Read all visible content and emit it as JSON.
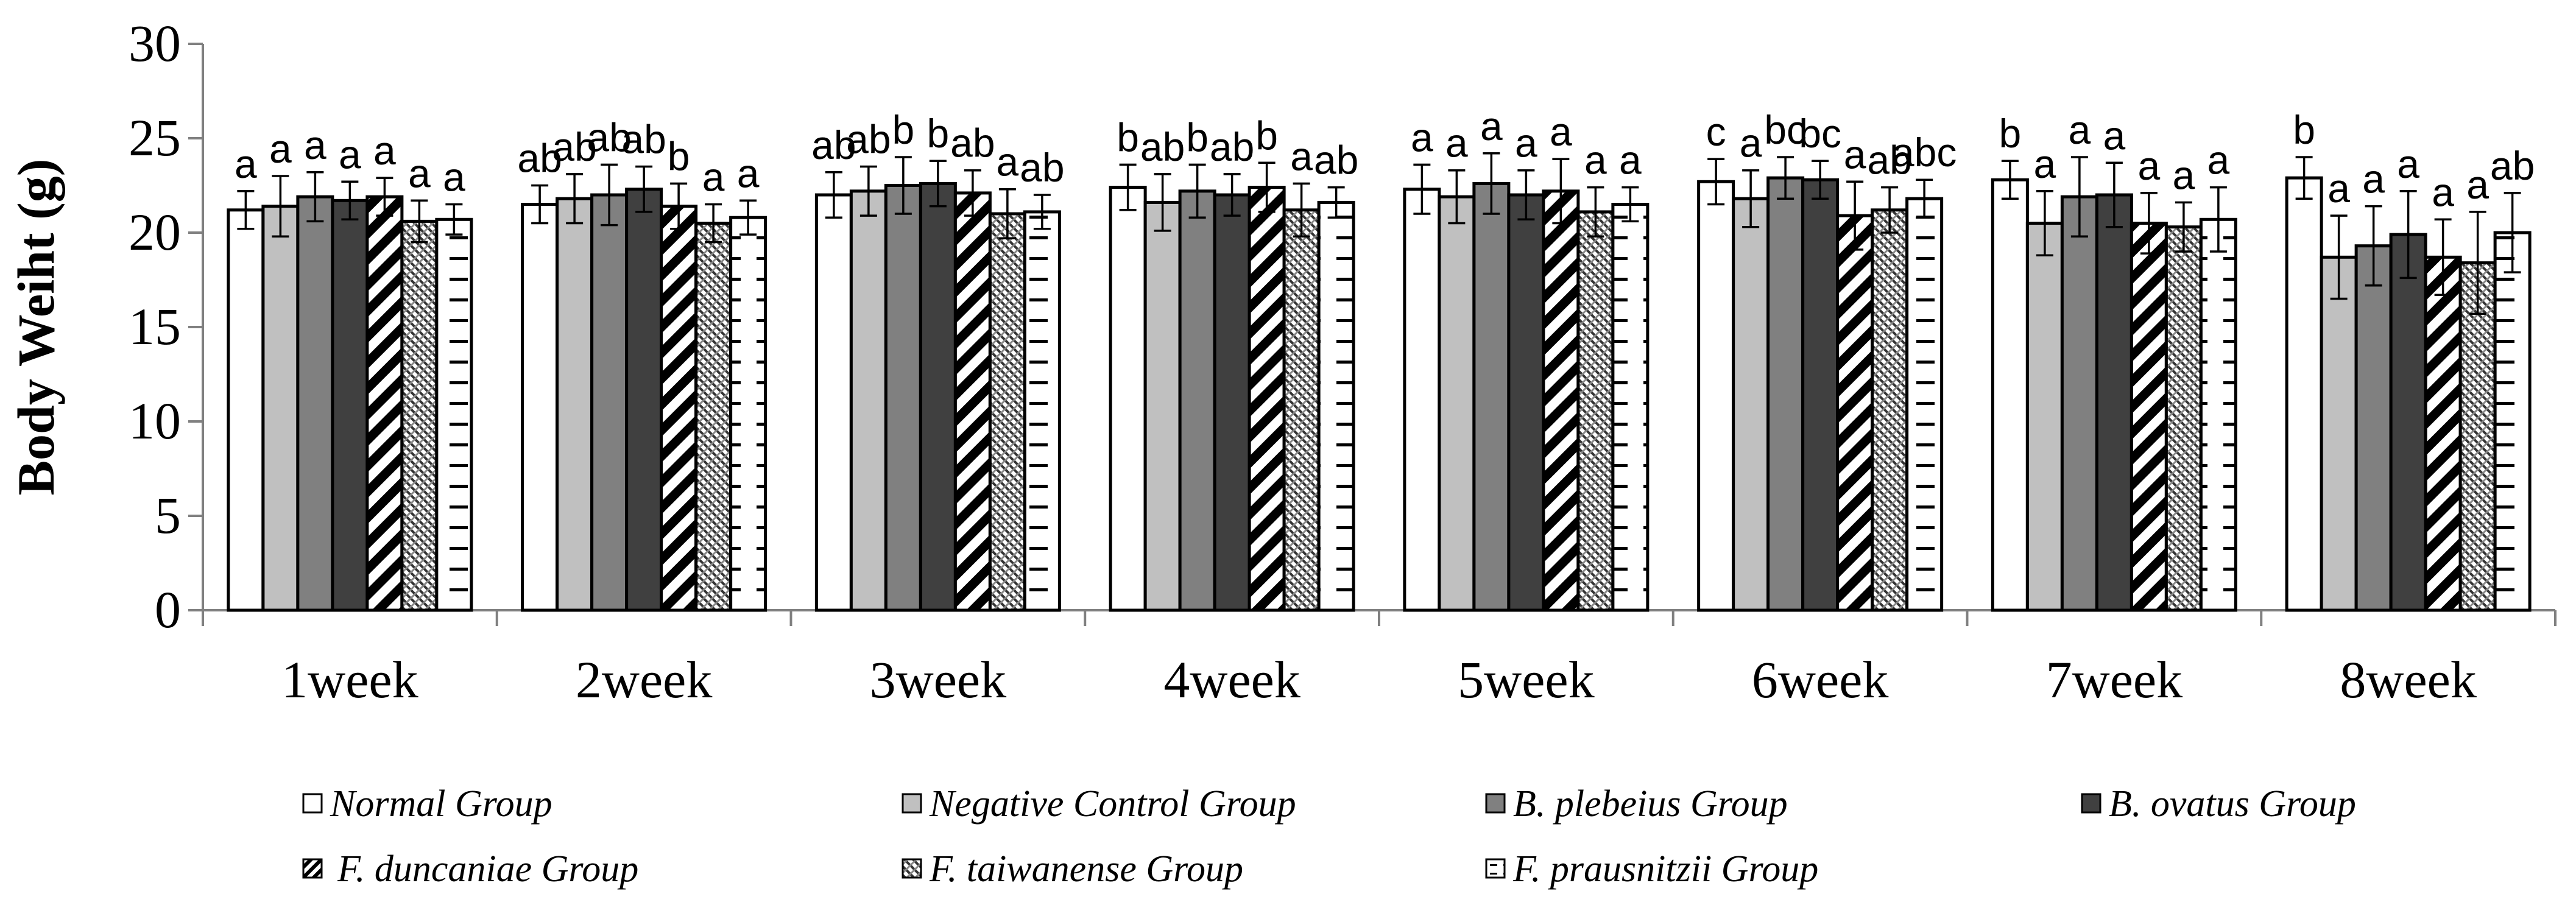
{
  "chart_data": {
    "type": "bar",
    "title": "",
    "xlabel": "",
    "ylabel": "Body Weiht (g)",
    "ylim": [
      0,
      30
    ],
    "yticks": [
      "0",
      "5",
      "10",
      "15",
      "20",
      "25",
      "30"
    ],
    "grid": false,
    "legend_position": "bottom",
    "categories": [
      "1week",
      "2week",
      "3week",
      "4week",
      "5week",
      "6week",
      "7week",
      "8week"
    ],
    "series": [
      {
        "name": "Normal Group",
        "pattern": "white",
        "values": [
          21.2,
          21.5,
          22.0,
          22.4,
          22.3,
          22.7,
          22.8,
          22.9
        ],
        "errors": [
          1.0,
          1.0,
          1.2,
          1.2,
          1.3,
          1.2,
          1.0,
          1.1
        ],
        "labels": [
          "a",
          "ab",
          "ab",
          "b",
          "a",
          "c",
          "b",
          "b"
        ]
      },
      {
        "name": "Negative Control Group",
        "pattern": "lightgray",
        "values": [
          21.4,
          21.8,
          22.2,
          21.6,
          21.9,
          21.8,
          20.5,
          18.7
        ],
        "errors": [
          1.6,
          1.3,
          1.3,
          1.5,
          1.4,
          1.5,
          1.7,
          2.2
        ],
        "labels": [
          "a",
          "ab",
          "ab",
          "ab",
          "a",
          "a",
          "a",
          "a"
        ]
      },
      {
        "name": "B. plebeius Group",
        "pattern": "gray",
        "values": [
          21.9,
          22.0,
          22.5,
          22.2,
          22.6,
          22.9,
          21.9,
          19.3
        ],
        "errors": [
          1.3,
          1.6,
          1.5,
          1.4,
          1.6,
          1.1,
          2.1,
          2.1
        ],
        "labels": [
          "a",
          "ab",
          "b",
          "b",
          "a",
          "bc",
          "a",
          "a"
        ]
      },
      {
        "name": "B. ovatus Group",
        "pattern": "dark",
        "values": [
          21.7,
          22.3,
          22.6,
          22.0,
          22.0,
          22.8,
          22.0,
          19.9
        ],
        "errors": [
          1.0,
          1.2,
          1.2,
          1.1,
          1.3,
          1.0,
          1.7,
          2.3
        ],
        "labels": [
          "a",
          "ab",
          "b",
          "ab",
          "a",
          "bc",
          "a",
          "a"
        ]
      },
      {
        "name": "F. duncaniae Group",
        "pattern": "diagonal",
        "values": [
          21.9,
          21.4,
          22.1,
          22.4,
          22.2,
          20.9,
          20.5,
          18.7
        ],
        "errors": [
          1.0,
          1.2,
          1.2,
          1.3,
          1.7,
          1.8,
          1.6,
          2.0
        ],
        "labels": [
          "a",
          "b",
          "ab",
          "b",
          "a",
          "a",
          "a",
          "a"
        ]
      },
      {
        "name": "F. taiwanense Group",
        "pattern": "dotted",
        "values": [
          20.6,
          20.5,
          21.0,
          21.2,
          21.1,
          21.2,
          20.3,
          18.4
        ],
        "errors": [
          1.1,
          1.0,
          1.3,
          1.4,
          1.3,
          1.2,
          1.3,
          2.7
        ],
        "labels": [
          "a",
          "a",
          "a",
          "a",
          "a",
          "ab",
          "a",
          "a"
        ]
      },
      {
        "name": "F. prausnitzii Group",
        "pattern": "hdash",
        "values": [
          20.7,
          20.8,
          21.1,
          21.6,
          21.5,
          21.8,
          20.7,
          20.0
        ],
        "errors": [
          0.8,
          0.9,
          0.9,
          0.8,
          0.9,
          1.0,
          1.7,
          2.1
        ],
        "labels": [
          "a",
          "a",
          "ab",
          "ab",
          "a",
          "abc",
          "a",
          "ab"
        ]
      }
    ]
  }
}
